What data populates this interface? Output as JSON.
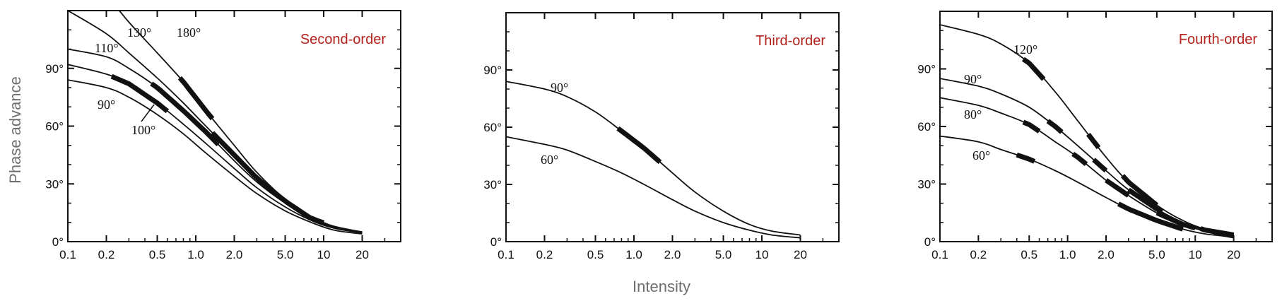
{
  "y_label": "Phase advance",
  "x_label": "Intensity",
  "chart_data": [
    {
      "type": "line",
      "title": "Second-order",
      "x_scale": "log",
      "xlim": [
        0.1,
        40
      ],
      "ylim": [
        0,
        120
      ],
      "x_ticks": [
        "0.1",
        "0.2",
        "0.5",
        "1.0",
        "2.0",
        "5.0",
        "10",
        "20"
      ],
      "y_ticks": [
        "0°",
        "30°",
        "60°",
        "90°"
      ],
      "series": [
        {
          "name": "180°",
          "x": [
            0.13,
            0.2,
            0.3,
            0.5,
            0.8,
            1.2,
            2,
            3,
            5,
            8,
            12,
            20
          ],
          "y": [
            140,
            128,
            114,
            98,
            83,
            68,
            50,
            36,
            22,
            13,
            8,
            5
          ],
          "highlight": [
            [
              0.75,
              1.35
            ]
          ]
        },
        {
          "name": "130°",
          "x": [
            0.1,
            0.2,
            0.3,
            0.5,
            0.8,
            1.2,
            2,
            3,
            5,
            8,
            12,
            20
          ],
          "y": [
            120,
            108,
            98,
            85,
            72,
            60,
            45,
            33,
            21,
            12,
            8,
            5
          ],
          "highlight": [
            [
              1.35,
              10.0
            ]
          ]
        },
        {
          "name": "110°",
          "x": [
            0.1,
            0.2,
            0.3,
            0.5,
            0.8,
            1.2,
            2,
            3,
            5,
            8,
            12,
            20
          ],
          "y": [
            100,
            96,
            90,
            80,
            68,
            57,
            42,
            31,
            20,
            12,
            7.5,
            5
          ],
          "highlight": [
            [
              0.45,
              1.5
            ]
          ]
        },
        {
          "name": "100°",
          "x": [
            0.1,
            0.2,
            0.3,
            0.5,
            0.8,
            1.2,
            2,
            3,
            5,
            8,
            12,
            20
          ],
          "y": [
            92,
            87,
            82,
            72,
            61,
            51,
            38,
            28,
            18,
            11,
            7,
            4.5
          ],
          "highlight": [
            [
              0.22,
              0.6
            ]
          ]
        },
        {
          "name": "90°",
          "x": [
            0.1,
            0.2,
            0.3,
            0.5,
            0.8,
            1.2,
            2,
            3,
            5,
            8,
            12,
            20
          ],
          "y": [
            84,
            80,
            75,
            66,
            56,
            46,
            34,
            25,
            16,
            10,
            6,
            4
          ],
          "highlight": []
        }
      ],
      "labels": [
        {
          "text": "130°",
          "series": "130°"
        },
        {
          "text": "180°",
          "series": "180°"
        },
        {
          "text": "110°",
          "series": "110°"
        },
        {
          "text": "90°",
          "series": "90°"
        },
        {
          "text": "100°",
          "series": "100°"
        }
      ]
    },
    {
      "type": "line",
      "title": "Third-order",
      "x_scale": "log",
      "xlim": [
        0.1,
        40
      ],
      "ylim": [
        0,
        120
      ],
      "x_ticks": [
        "0.1",
        "0.2",
        "0.5",
        "1.0",
        "2.0",
        "5.0",
        "10",
        "20"
      ],
      "y_ticks": [
        "0°",
        "30°",
        "60°",
        "90°"
      ],
      "series": [
        {
          "name": "90°",
          "x": [
            0.1,
            0.2,
            0.3,
            0.5,
            0.8,
            1.2,
            2,
            3,
            5,
            8,
            12,
            20
          ],
          "y": [
            84,
            80,
            76,
            68,
            58,
            49,
            36,
            26,
            16,
            9,
            5.5,
            3.5
          ],
          "highlight": [
            [
              0.75,
              1.6
            ]
          ]
        },
        {
          "name": "60°",
          "x": [
            0.1,
            0.2,
            0.3,
            0.5,
            0.8,
            1.2,
            2,
            3,
            5,
            8,
            12,
            20
          ],
          "y": [
            55,
            51,
            48,
            42,
            36,
            30,
            22,
            16,
            10,
            6,
            3.5,
            2
          ],
          "highlight": []
        }
      ],
      "labels": [
        {
          "text": "90°",
          "series": "90°"
        },
        {
          "text": "60°",
          "series": "60°"
        }
      ]
    },
    {
      "type": "line",
      "title": "Fourth-order",
      "x_scale": "log",
      "xlim": [
        0.1,
        40
      ],
      "ylim": [
        0,
        120
      ],
      "x_ticks": [
        "0.1",
        "0.2",
        "0.5",
        "1.0",
        "2.0",
        "5.0",
        "10",
        "20"
      ],
      "y_ticks": [
        "0°",
        "30°",
        "60°",
        "90°"
      ],
      "series": [
        {
          "name": "120°",
          "x": [
            0.1,
            0.2,
            0.3,
            0.5,
            0.8,
            1.2,
            2,
            3,
            5,
            8,
            12,
            20
          ],
          "y": [
            113,
            108,
            103,
            93,
            78,
            63,
            44,
            31,
            19,
            11,
            6.5,
            4
          ],
          "highlight": [
            [
              0.45,
              0.65
            ],
            [
              1.45,
              1.75
            ],
            [
              2.7,
              5.0
            ]
          ]
        },
        {
          "name": "90°",
          "x": [
            0.1,
            0.2,
            0.3,
            0.5,
            0.8,
            1.2,
            2,
            3,
            5,
            8,
            12,
            20
          ],
          "y": [
            85,
            81,
            77,
            70,
            60,
            50,
            37,
            27,
            17,
            10,
            6,
            3.5
          ],
          "highlight": [
            [
              0.7,
              0.9
            ],
            [
              1.6,
              2.0
            ],
            [
              3.0,
              5.5
            ],
            [
              11,
              20
            ]
          ]
        },
        {
          "name": "80°",
          "x": [
            0.1,
            0.2,
            0.3,
            0.5,
            0.8,
            1.2,
            2,
            3,
            5,
            8,
            12,
            20
          ],
          "y": [
            75,
            71,
            67,
            61,
            52,
            44,
            32,
            24,
            15,
            9,
            5.5,
            3
          ],
          "highlight": [
            [
              0.45,
              0.6
            ],
            [
              1.1,
              1.4
            ],
            [
              2.0,
              3.0
            ],
            [
              5,
              10
            ],
            [
              14,
              20
            ]
          ]
        },
        {
          "name": "60°",
          "x": [
            0.1,
            0.2,
            0.3,
            0.5,
            0.8,
            1.2,
            2,
            3,
            5,
            8,
            12,
            20
          ],
          "y": [
            55,
            52,
            48,
            43,
            37,
            31,
            23,
            17,
            11,
            6.5,
            4,
            2.5
          ],
          "highlight": [
            [
              0.4,
              0.55
            ],
            [
              2.5,
              8.0
            ]
          ]
        }
      ],
      "labels": [
        {
          "text": "120°",
          "series": "120°"
        },
        {
          "text": "90°",
          "series": "90°"
        },
        {
          "text": "80°",
          "series": "80°"
        },
        {
          "text": "60°",
          "series": "60°"
        }
      ]
    }
  ]
}
